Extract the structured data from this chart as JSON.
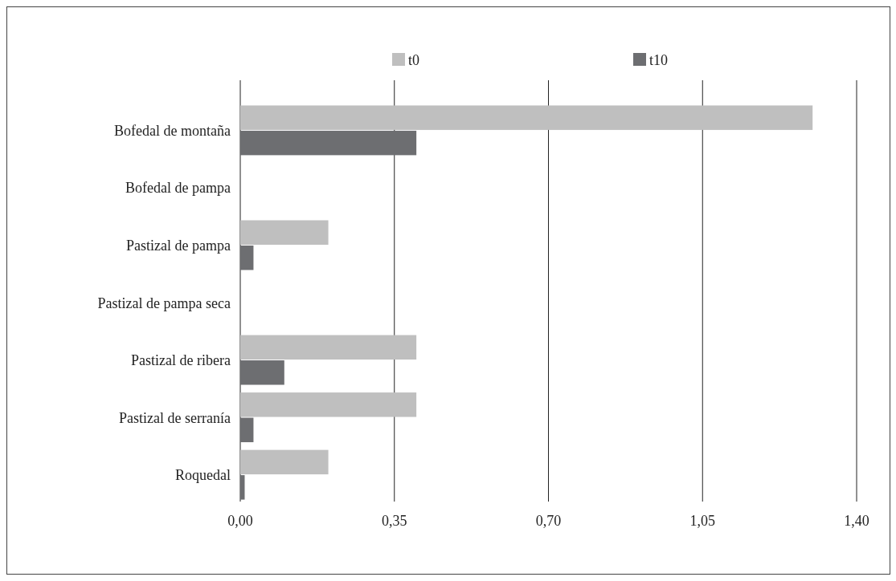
{
  "chart_data": {
    "type": "bar",
    "orientation": "horizontal",
    "categories": [
      "Bofedal de montaña",
      "Bofedal de pampa",
      "Pastizal de pampa",
      "Pastizal de pampa seca",
      "Pastizal de ribera",
      "Pastizal de serranía",
      "Roquedal"
    ],
    "series": [
      {
        "name": "t0",
        "color": "#bfbfbf",
        "values": [
          1.3,
          0,
          0.2,
          0,
          0.4,
          0.4,
          0.2
        ]
      },
      {
        "name": "t10",
        "color": "#6d6e71",
        "values": [
          0.4,
          0,
          0.03,
          0,
          0.1,
          0.03,
          0.01
        ]
      }
    ],
    "xlim": [
      0,
      1.4
    ],
    "xticks": [
      {
        "value": 0,
        "label": "0,00"
      },
      {
        "value": 0.35,
        "label": "0,35"
      },
      {
        "value": 0.7,
        "label": "0,70"
      },
      {
        "value": 1.05,
        "label": "1,05"
      },
      {
        "value": 1.4,
        "label": "1,40"
      }
    ],
    "grid": "x",
    "legend": "top"
  }
}
